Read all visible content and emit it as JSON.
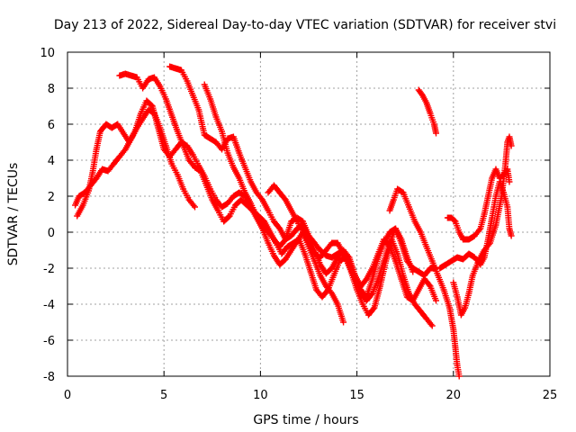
{
  "chart_data": {
    "type": "scatter",
    "title": "Day 213 of 2022, Sidereal Day-to-day VTEC variation (SDTVAR) for receiver stvi",
    "xlabel": "GPS time / hours",
    "ylabel": "SDTVAR / TECUs",
    "xlim": [
      0,
      25
    ],
    "ylim": [
      -8,
      10
    ],
    "xticks": [
      0,
      5,
      10,
      15,
      20,
      25
    ],
    "yticks": [
      -8,
      -6,
      -4,
      -2,
      0,
      2,
      4,
      6,
      8,
      10
    ],
    "grid": true,
    "marker": "+",
    "color": "#ff0000",
    "series": [
      {
        "points": [
          [
            0.4,
            1.5
          ],
          [
            0.6,
            2.0
          ],
          [
            0.9,
            2.2
          ],
          [
            1.2,
            2.6
          ],
          [
            1.5,
            3.0
          ],
          [
            1.8,
            3.5
          ],
          [
            2.1,
            3.4
          ],
          [
            2.4,
            3.8
          ],
          [
            2.7,
            4.2
          ],
          [
            3.0,
            4.6
          ],
          [
            3.3,
            5.2
          ],
          [
            3.6,
            5.8
          ],
          [
            3.9,
            6.3
          ],
          [
            4.2,
            6.8
          ],
          [
            4.5,
            6.6
          ],
          [
            4.8,
            5.8
          ],
          [
            5.1,
            4.8
          ],
          [
            5.4,
            3.8
          ],
          [
            5.7,
            3.2
          ],
          [
            6.0,
            2.4
          ],
          [
            6.3,
            1.8
          ],
          [
            6.6,
            1.4
          ]
        ]
      },
      {
        "points": [
          [
            0.5,
            0.9
          ],
          [
            0.8,
            1.5
          ],
          [
            1.1,
            2.3
          ],
          [
            1.3,
            3.3
          ],
          [
            1.5,
            4.6
          ],
          [
            1.7,
            5.6
          ],
          [
            2.0,
            6.0
          ],
          [
            2.3,
            5.8
          ],
          [
            2.6,
            6.0
          ],
          [
            2.9,
            5.5
          ],
          [
            3.2,
            5.0
          ],
          [
            3.5,
            5.6
          ],
          [
            3.8,
            6.6
          ],
          [
            4.1,
            7.3
          ],
          [
            4.4,
            7.0
          ],
          [
            4.7,
            5.8
          ],
          [
            5.0,
            4.6
          ],
          [
            5.3,
            4.2
          ],
          [
            5.6,
            4.6
          ],
          [
            5.9,
            5.0
          ],
          [
            6.2,
            4.8
          ],
          [
            6.5,
            4.3
          ],
          [
            6.8,
            3.7
          ],
          [
            7.1,
            3.1
          ],
          [
            7.4,
            2.4
          ],
          [
            7.7,
            1.8
          ],
          [
            8.0,
            1.4
          ],
          [
            8.3,
            1.6
          ],
          [
            8.6,
            2.0
          ],
          [
            8.9,
            2.2
          ],
          [
            9.2,
            2.0
          ],
          [
            9.5,
            1.4
          ],
          [
            9.8,
            0.8
          ],
          [
            10.1,
            0.2
          ],
          [
            10.4,
            -0.6
          ],
          [
            10.7,
            -1.3
          ],
          [
            11.0,
            -1.8
          ],
          [
            11.3,
            -1.5
          ],
          [
            11.6,
            -1.0
          ],
          [
            11.9,
            -0.5
          ],
          [
            12.2,
            0.0
          ],
          [
            12.5,
            -0.8
          ],
          [
            12.8,
            -1.6
          ],
          [
            13.1,
            -2.4
          ],
          [
            13.4,
            -3.0
          ],
          [
            13.7,
            -3.4
          ],
          [
            14.0,
            -4.0
          ],
          [
            14.3,
            -5.0
          ]
        ]
      },
      {
        "points": [
          [
            2.7,
            8.7
          ],
          [
            3.0,
            8.8
          ],
          [
            3.3,
            8.7
          ],
          [
            3.6,
            8.6
          ],
          [
            3.9,
            8.0
          ],
          [
            4.2,
            8.5
          ],
          [
            4.5,
            8.6
          ],
          [
            4.8,
            8.1
          ],
          [
            5.1,
            7.4
          ],
          [
            5.4,
            6.5
          ],
          [
            5.7,
            5.6
          ],
          [
            6.0,
            4.8
          ],
          [
            6.3,
            4.0
          ],
          [
            6.6,
            3.6
          ],
          [
            6.9,
            3.4
          ],
          [
            7.2,
            2.6
          ],
          [
            7.5,
            1.8
          ],
          [
            7.8,
            1.2
          ],
          [
            8.1,
            0.6
          ],
          [
            8.4,
            0.9
          ],
          [
            8.7,
            1.5
          ],
          [
            9.0,
            1.8
          ],
          [
            9.3,
            1.5
          ],
          [
            9.6,
            1.2
          ],
          [
            9.9,
            0.9
          ],
          [
            10.2,
            0.6
          ],
          [
            10.5,
            0.0
          ],
          [
            10.8,
            -0.6
          ],
          [
            11.1,
            -1.2
          ],
          [
            11.4,
            -0.8
          ],
          [
            11.7,
            -0.6
          ],
          [
            12.0,
            -0.4
          ],
          [
            12.3,
            -1.2
          ],
          [
            12.6,
            -2.2
          ],
          [
            12.9,
            -3.2
          ],
          [
            13.2,
            -3.6
          ],
          [
            13.5,
            -3.2
          ],
          [
            13.8,
            -2.4
          ],
          [
            14.1,
            -1.6
          ],
          [
            14.4,
            -1.4
          ],
          [
            14.7,
            -2.2
          ],
          [
            15.0,
            -3.2
          ],
          [
            15.3,
            -4.0
          ],
          [
            15.6,
            -4.6
          ],
          [
            15.9,
            -4.2
          ],
          [
            16.2,
            -3.0
          ],
          [
            16.5,
            -1.6
          ],
          [
            16.8,
            -0.4
          ],
          [
            17.1,
            -1.2
          ],
          [
            17.4,
            -2.4
          ],
          [
            17.7,
            -3.4
          ],
          [
            18.0,
            -4.0
          ],
          [
            18.3,
            -4.4
          ],
          [
            18.6,
            -4.8
          ],
          [
            18.9,
            -5.2
          ]
        ]
      },
      {
        "points": [
          [
            5.3,
            9.2
          ],
          [
            5.6,
            9.1
          ],
          [
            5.9,
            9.0
          ],
          [
            6.2,
            8.4
          ],
          [
            6.5,
            7.6
          ],
          [
            6.8,
            6.8
          ],
          [
            7.1,
            5.4
          ],
          [
            7.4,
            5.2
          ],
          [
            7.7,
            5.0
          ],
          [
            8.0,
            4.6
          ],
          [
            8.3,
            5.2
          ],
          [
            8.6,
            5.3
          ],
          [
            8.9,
            4.4
          ],
          [
            9.2,
            3.6
          ],
          [
            9.5,
            2.8
          ],
          [
            9.8,
            2.2
          ],
          [
            10.1,
            1.8
          ],
          [
            10.4,
            1.2
          ],
          [
            10.7,
            0.6
          ],
          [
            11.0,
            0.2
          ],
          [
            11.3,
            -0.4
          ],
          [
            11.6,
            -0.2
          ],
          [
            11.9,
            0.2
          ],
          [
            12.2,
            0.4
          ],
          [
            12.5,
            -0.2
          ],
          [
            12.8,
            -0.6
          ],
          [
            13.1,
            -1.0
          ],
          [
            13.4,
            -1.3
          ],
          [
            13.7,
            -1.4
          ],
          [
            14.0,
            -1.2
          ],
          [
            14.3,
            -1.0
          ],
          [
            14.6,
            -1.4
          ],
          [
            14.9,
            -2.4
          ],
          [
            15.2,
            -3.2
          ],
          [
            15.5,
            -3.6
          ],
          [
            15.8,
            -2.6
          ],
          [
            16.1,
            -1.4
          ],
          [
            16.4,
            -0.6
          ],
          [
            16.7,
            0.0
          ],
          [
            17.0,
            0.2
          ],
          [
            17.3,
            -0.6
          ],
          [
            17.6,
            -1.6
          ],
          [
            17.9,
            -2.0
          ],
          [
            18.2,
            -2.2
          ],
          [
            18.5,
            -2.4
          ],
          [
            18.8,
            -2.0
          ],
          [
            19.1,
            -2.0
          ]
        ]
      },
      {
        "points": [
          [
            7.1,
            8.2
          ],
          [
            7.4,
            7.4
          ],
          [
            7.7,
            6.4
          ],
          [
            8.0,
            5.6
          ],
          [
            8.3,
            4.4
          ],
          [
            8.6,
            3.6
          ],
          [
            8.9,
            3.0
          ],
          [
            9.2,
            2.2
          ],
          [
            9.5,
            1.6
          ],
          [
            9.8,
            0.9
          ],
          [
            10.1,
            0.4
          ],
          [
            10.4,
            0.0
          ],
          [
            10.7,
            -0.4
          ],
          [
            11.0,
            -0.8
          ],
          [
            11.3,
            -0.4
          ],
          [
            11.6,
            0.6
          ],
          [
            11.9,
            0.8
          ],
          [
            12.2,
            0.6
          ],
          [
            12.5,
            -0.2
          ],
          [
            12.8,
            -1.0
          ],
          [
            13.1,
            -1.8
          ],
          [
            13.4,
            -2.3
          ],
          [
            13.7,
            -2.0
          ],
          [
            14.0,
            -1.4
          ],
          [
            14.3,
            -1.0
          ],
          [
            14.6,
            -1.6
          ],
          [
            14.9,
            -2.4
          ],
          [
            15.2,
            -3.0
          ],
          [
            15.5,
            -2.6
          ],
          [
            15.8,
            -2.0
          ],
          [
            16.1,
            -1.2
          ],
          [
            16.4,
            -0.4
          ],
          [
            16.7,
            -0.8
          ],
          [
            17.0,
            -1.6
          ],
          [
            17.3,
            -2.6
          ],
          [
            17.6,
            -3.6
          ],
          [
            17.9,
            -3.8
          ],
          [
            18.2,
            -3.2
          ],
          [
            18.5,
            -2.6
          ],
          [
            18.8,
            -3.0
          ],
          [
            19.1,
            -3.8
          ]
        ]
      },
      {
        "points": [
          [
            10.4,
            2.2
          ],
          [
            10.7,
            2.6
          ],
          [
            11.0,
            2.2
          ],
          [
            11.3,
            1.8
          ],
          [
            11.6,
            1.2
          ],
          [
            11.9,
            0.6
          ],
          [
            12.2,
            0.0
          ],
          [
            12.5,
            -0.6
          ],
          [
            12.8,
            -1.2
          ],
          [
            13.1,
            -1.4
          ],
          [
            13.4,
            -1.0
          ],
          [
            13.7,
            -0.6
          ],
          [
            14.0,
            -0.6
          ],
          [
            14.3,
            -1.2
          ],
          [
            14.6,
            -1.8
          ],
          [
            14.9,
            -2.6
          ],
          [
            15.2,
            -3.4
          ],
          [
            15.5,
            -3.8
          ],
          [
            15.8,
            -3.4
          ],
          [
            16.1,
            -2.6
          ],
          [
            16.4,
            -1.6
          ],
          [
            16.7,
            -0.6
          ],
          [
            17.0,
            0.2
          ],
          [
            17.3,
            -0.4
          ],
          [
            17.6,
            -1.4
          ],
          [
            17.9,
            -2.2
          ]
        ]
      },
      {
        "points": [
          [
            16.7,
            1.2
          ],
          [
            16.9,
            1.8
          ],
          [
            17.1,
            2.4
          ],
          [
            17.4,
            2.2
          ],
          [
            17.7,
            1.4
          ],
          [
            18.0,
            0.6
          ],
          [
            18.3,
            0.0
          ],
          [
            18.6,
            -0.8
          ],
          [
            18.9,
            -1.6
          ],
          [
            19.2,
            -2.4
          ],
          [
            19.5,
            -3.2
          ],
          [
            19.8,
            -4.2
          ],
          [
            20.0,
            -5.4
          ],
          [
            20.1,
            -6.4
          ],
          [
            20.2,
            -7.4
          ],
          [
            20.3,
            -8.0
          ]
        ]
      },
      {
        "points": [
          [
            18.2,
            7.9
          ],
          [
            18.4,
            7.6
          ],
          [
            18.6,
            7.2
          ],
          [
            18.8,
            6.6
          ],
          [
            19.0,
            6.0
          ],
          [
            19.1,
            5.5
          ]
        ]
      },
      {
        "points": [
          [
            19.3,
            -2.0
          ],
          [
            19.6,
            -1.8
          ],
          [
            19.9,
            -1.6
          ],
          [
            20.2,
            -1.4
          ],
          [
            20.5,
            -1.5
          ],
          [
            20.8,
            -1.2
          ],
          [
            21.1,
            -1.4
          ],
          [
            21.4,
            -1.8
          ],
          [
            21.6,
            -1.4
          ],
          [
            21.8,
            -0.4
          ],
          [
            22.0,
            0.8
          ],
          [
            22.2,
            2.0
          ],
          [
            22.4,
            2.8
          ],
          [
            22.6,
            2.2
          ],
          [
            22.8,
            1.4
          ],
          [
            22.9,
            0.2
          ],
          [
            23.0,
            -0.2
          ]
        ]
      },
      {
        "points": [
          [
            19.7,
            0.8
          ],
          [
            19.9,
            0.8
          ],
          [
            20.1,
            0.6
          ],
          [
            20.3,
            0.0
          ],
          [
            20.5,
            -0.4
          ],
          [
            20.8,
            -0.4
          ],
          [
            21.1,
            -0.2
          ],
          [
            21.4,
            0.2
          ],
          [
            21.6,
            1.0
          ],
          [
            21.8,
            2.0
          ],
          [
            22.0,
            3.0
          ],
          [
            22.2,
            3.5
          ],
          [
            22.4,
            3.0
          ],
          [
            22.6,
            3.2
          ],
          [
            22.8,
            3.5
          ],
          [
            22.9,
            2.8
          ]
        ]
      },
      {
        "points": [
          [
            20.0,
            -2.8
          ],
          [
            20.2,
            -3.6
          ],
          [
            20.4,
            -4.6
          ],
          [
            20.6,
            -4.2
          ],
          [
            20.8,
            -3.4
          ],
          [
            21.0,
            -2.4
          ],
          [
            21.3,
            -1.6
          ],
          [
            21.6,
            -1.0
          ],
          [
            21.9,
            -0.6
          ],
          [
            22.2,
            0.4
          ],
          [
            22.5,
            2.0
          ],
          [
            22.7,
            3.8
          ],
          [
            22.8,
            5.0
          ],
          [
            22.9,
            5.3
          ],
          [
            23.0,
            4.8
          ]
        ]
      }
    ]
  }
}
